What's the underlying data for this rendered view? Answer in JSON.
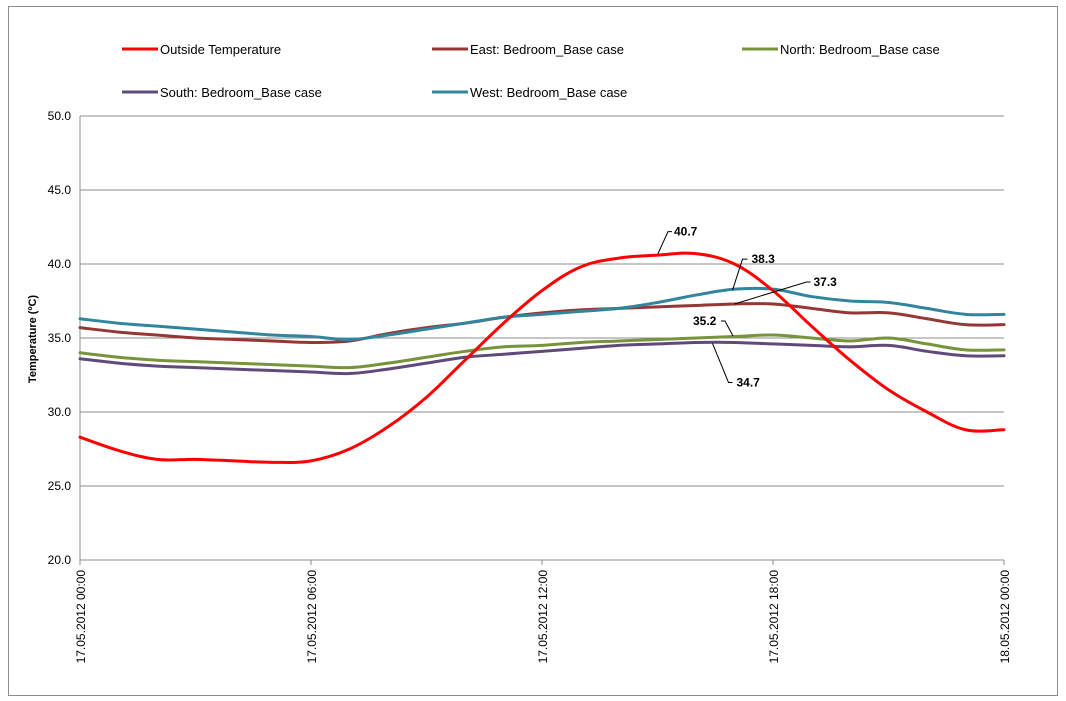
{
  "chart_data": {
    "type": "line",
    "title": "",
    "xlabel": "",
    "ylabel": "Temperature (ºC)",
    "ylim": [
      20,
      50
    ],
    "yticks": [
      "20.0",
      "25.0",
      "30.0",
      "35.0",
      "40.0",
      "45.0",
      "50.0"
    ],
    "xticks": [
      "17.05.2012 00:00",
      "17.05.2012 06:00",
      "17.05.2012 12:00",
      "17.05.2012 18:00",
      "18.05.2012 00:00"
    ],
    "x": [
      "17.05.2012 00:00",
      "17.05.2012 01:00",
      "17.05.2012 02:00",
      "17.05.2012 03:00",
      "17.05.2012 04:00",
      "17.05.2012 05:00",
      "17.05.2012 06:00",
      "17.05.2012 07:00",
      "17.05.2012 08:00",
      "17.05.2012 09:00",
      "17.05.2012 10:00",
      "17.05.2012 11:00",
      "17.05.2012 12:00",
      "17.05.2012 13:00",
      "17.05.2012 14:00",
      "17.05.2012 15:00",
      "17.05.2012 16:00",
      "17.05.2012 17:00",
      "17.05.2012 18:00",
      "17.05.2012 19:00",
      "17.05.2012 20:00",
      "17.05.2012 21:00",
      "17.05.2012 22:00",
      "17.05.2012 23:00",
      "18.05.2012 00:00"
    ],
    "grid": true,
    "legend_position": "top",
    "series": [
      {
        "name": "Outside Temperature",
        "color": "#ff0000",
        "values": [
          28.3,
          27.4,
          26.8,
          26.8,
          26.7,
          26.6,
          26.7,
          27.5,
          29.0,
          31.0,
          33.5,
          36.0,
          38.2,
          39.8,
          40.4,
          40.6,
          40.7,
          40.0,
          38.2,
          35.8,
          33.5,
          31.5,
          30.0,
          28.8,
          28.8
        ]
      },
      {
        "name": "East: Bedroom_Base case",
        "color": "#953735",
        "values": [
          35.7,
          35.4,
          35.2,
          35.0,
          34.9,
          34.8,
          34.7,
          34.8,
          35.3,
          35.7,
          36.0,
          36.4,
          36.7,
          36.9,
          37.0,
          37.1,
          37.2,
          37.3,
          37.3,
          37.0,
          36.7,
          36.7,
          36.3,
          35.9,
          35.9
        ]
      },
      {
        "name": "North: Bedroom_Base case",
        "color": "#77933c",
        "values": [
          34.0,
          33.7,
          33.5,
          33.4,
          33.3,
          33.2,
          33.1,
          33.0,
          33.3,
          33.7,
          34.1,
          34.4,
          34.5,
          34.7,
          34.8,
          34.9,
          35.0,
          35.1,
          35.2,
          35.0,
          34.8,
          35.0,
          34.6,
          34.2,
          34.2
        ]
      },
      {
        "name": "South: Bedroom_Base case",
        "color": "#604a7b",
        "values": [
          33.6,
          33.3,
          33.1,
          33.0,
          32.9,
          32.8,
          32.7,
          32.6,
          32.9,
          33.3,
          33.7,
          33.9,
          34.1,
          34.3,
          34.5,
          34.6,
          34.7,
          34.7,
          34.6,
          34.5,
          34.4,
          34.5,
          34.1,
          33.8,
          33.8
        ]
      },
      {
        "name": "West: Bedroom_Base case",
        "color": "#31859c",
        "values": [
          36.3,
          36.0,
          35.8,
          35.6,
          35.4,
          35.2,
          35.1,
          34.9,
          35.2,
          35.6,
          36.0,
          36.4,
          36.6,
          36.8,
          37.0,
          37.4,
          37.9,
          38.3,
          38.3,
          37.8,
          37.5,
          37.4,
          37.0,
          36.6,
          36.6
        ]
      }
    ],
    "annotations": [
      {
        "text": "40.7",
        "series": "Outside Temperature",
        "x": "17.05.2012 16:00",
        "y": 40.7,
        "placement": "upper-right"
      },
      {
        "text": "38.3",
        "series": "West: Bedroom_Base case",
        "x": "17.05.2012 17:00",
        "y": 38.3,
        "placement": "upper-right"
      },
      {
        "text": "37.3",
        "series": "East: Bedroom_Base case",
        "x": "17.05.2012 17:00",
        "y": 37.3,
        "placement": "right"
      },
      {
        "text": "35.2",
        "series": "North: Bedroom_Base case",
        "x": "17.05.2012 18:00",
        "y": 35.2,
        "placement": "upper-left"
      },
      {
        "text": "34.7",
        "series": "South: Bedroom_Base case",
        "x": "17.05.2012 17:00",
        "y": 34.7,
        "placement": "lower-right"
      }
    ]
  }
}
